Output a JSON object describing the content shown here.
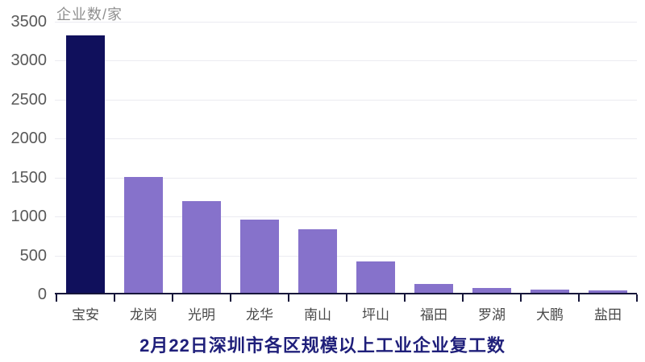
{
  "chart_data": {
    "type": "bar",
    "title": "2月22日深圳市各区规模以上工业企业复工数",
    "y_axis_label": "企业数/家",
    "xlabel": "",
    "ylabel": "企业数/家",
    "categories": [
      "宝安",
      "龙岗",
      "光明",
      "龙华",
      "南山",
      "坪山",
      "福田",
      "罗湖",
      "大鹏",
      "盐田"
    ],
    "values": [
      3300,
      1490,
      1175,
      940,
      820,
      400,
      110,
      65,
      40,
      30
    ],
    "ylim": [
      0,
      3500
    ],
    "y_ticks": [
      0,
      500,
      1000,
      1500,
      2000,
      2500,
      3000,
      3500
    ],
    "grid": true,
    "legend": "none",
    "highlight_category": "宝安",
    "colors": {
      "bar": "#8672cb",
      "highlight_bar": "#10105c",
      "title": "#1f1f7a",
      "axis": "#16163a",
      "gridline": "#ebebf1",
      "y_tick_label": "#595959",
      "x_tick_label": "#4a4a4a",
      "y_axis_label": "#8f8f8f"
    }
  }
}
